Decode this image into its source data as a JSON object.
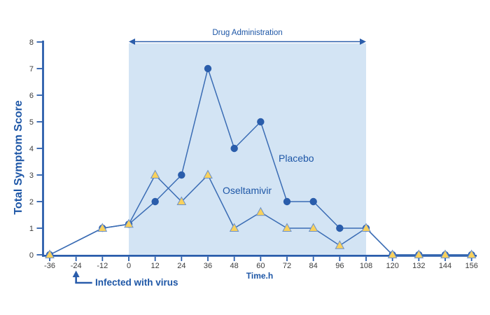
{
  "chart_data": {
    "type": "line",
    "title": "",
    "xlabel": "Time.h",
    "ylabel": "Total Symptom Score",
    "x": [
      -36,
      -12,
      0,
      12,
      24,
      36,
      48,
      60,
      72,
      84,
      96,
      108,
      120,
      132,
      144,
      156
    ],
    "series": [
      {
        "name": "Placebo",
        "marker": "circle",
        "values": [
          0,
          1,
          1.15,
          2,
          3,
          7,
          4,
          5,
          2,
          2,
          1,
          1,
          0,
          0,
          0,
          0
        ]
      },
      {
        "name": "Oseltamivir",
        "marker": "triangle",
        "values": [
          0,
          1,
          1.15,
          3,
          2,
          3,
          1,
          1.6,
          1,
          1,
          0.35,
          1,
          0,
          0,
          0,
          0
        ]
      }
    ],
    "xticks": [
      -36,
      -24,
      -12,
      0,
      12,
      24,
      36,
      48,
      60,
      72,
      84,
      96,
      108,
      120,
      132,
      144,
      156
    ],
    "yticks": [
      0,
      1,
      2,
      3,
      4,
      5,
      6,
      7,
      8
    ],
    "ylim": [
      0,
      8
    ],
    "xlim": [
      -36,
      156
    ],
    "grid": false,
    "band": {
      "label": "Drug Administration",
      "from": 0,
      "to": 108
    },
    "annotation": {
      "label": "Infected with virus",
      "at_x": -24
    },
    "colors": {
      "line": "#3a6cb4",
      "marker_blue": "#2a5dab",
      "triangle_fill": "#f9d15c",
      "triangle_stroke": "#6d92c9",
      "band": "#d3e4f4",
      "text_blue": "#1d56a6",
      "tick_text": "#3c3c3c",
      "axis": "#2a5dab"
    }
  }
}
